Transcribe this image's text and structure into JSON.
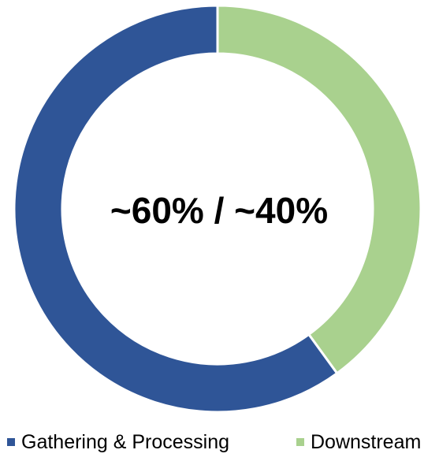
{
  "chart_data": {
    "type": "pie",
    "donut": true,
    "center_label": "~60% / ~40%",
    "slices": [
      {
        "label": "Downstream",
        "value": 40,
        "color": "#a9d18e"
      },
      {
        "label": "Gathering & Processing",
        "value": 60,
        "color": "#2f5597"
      }
    ],
    "legend": {
      "placement": "bottom",
      "entries": [
        {
          "label": "Gathering & Processing",
          "color": "#2f5597"
        },
        {
          "label": "Downstream",
          "color": "#a9d18e"
        }
      ]
    }
  }
}
